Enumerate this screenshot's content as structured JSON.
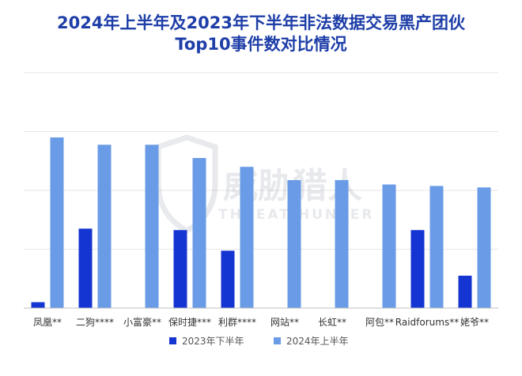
{
  "chart_data": {
    "type": "bar",
    "title": "2024年上半年及2023年下半年非法数据交易黑产团伙",
    "subtitle": "Top10事件数对比情况",
    "categories": [
      "凤凰**",
      "二狗****",
      "小富豪**",
      "保时捷***",
      "利群****",
      "网站**",
      "长虹**",
      "阿包**",
      "Raidforums**",
      "姥爷**"
    ],
    "series": [
      {
        "name": "2023年下半年",
        "color": "#1535d3",
        "values": [
          2,
          27,
          0,
          26.5,
          19.5,
          0,
          0,
          0,
          26.5,
          11
        ]
      },
      {
        "name": "2024年上半年",
        "color": "#6a9be6",
        "values": [
          58,
          55.5,
          55.5,
          51,
          48,
          43.5,
          43.5,
          42,
          41.5,
          41
        ]
      }
    ],
    "ylim": [
      0,
      80
    ],
    "grid": true,
    "legend": "bottom",
    "xlabel": "",
    "ylabel": ""
  },
  "watermark": {
    "name": "威胁猎人",
    "sub": "THREAT HUNTER"
  }
}
